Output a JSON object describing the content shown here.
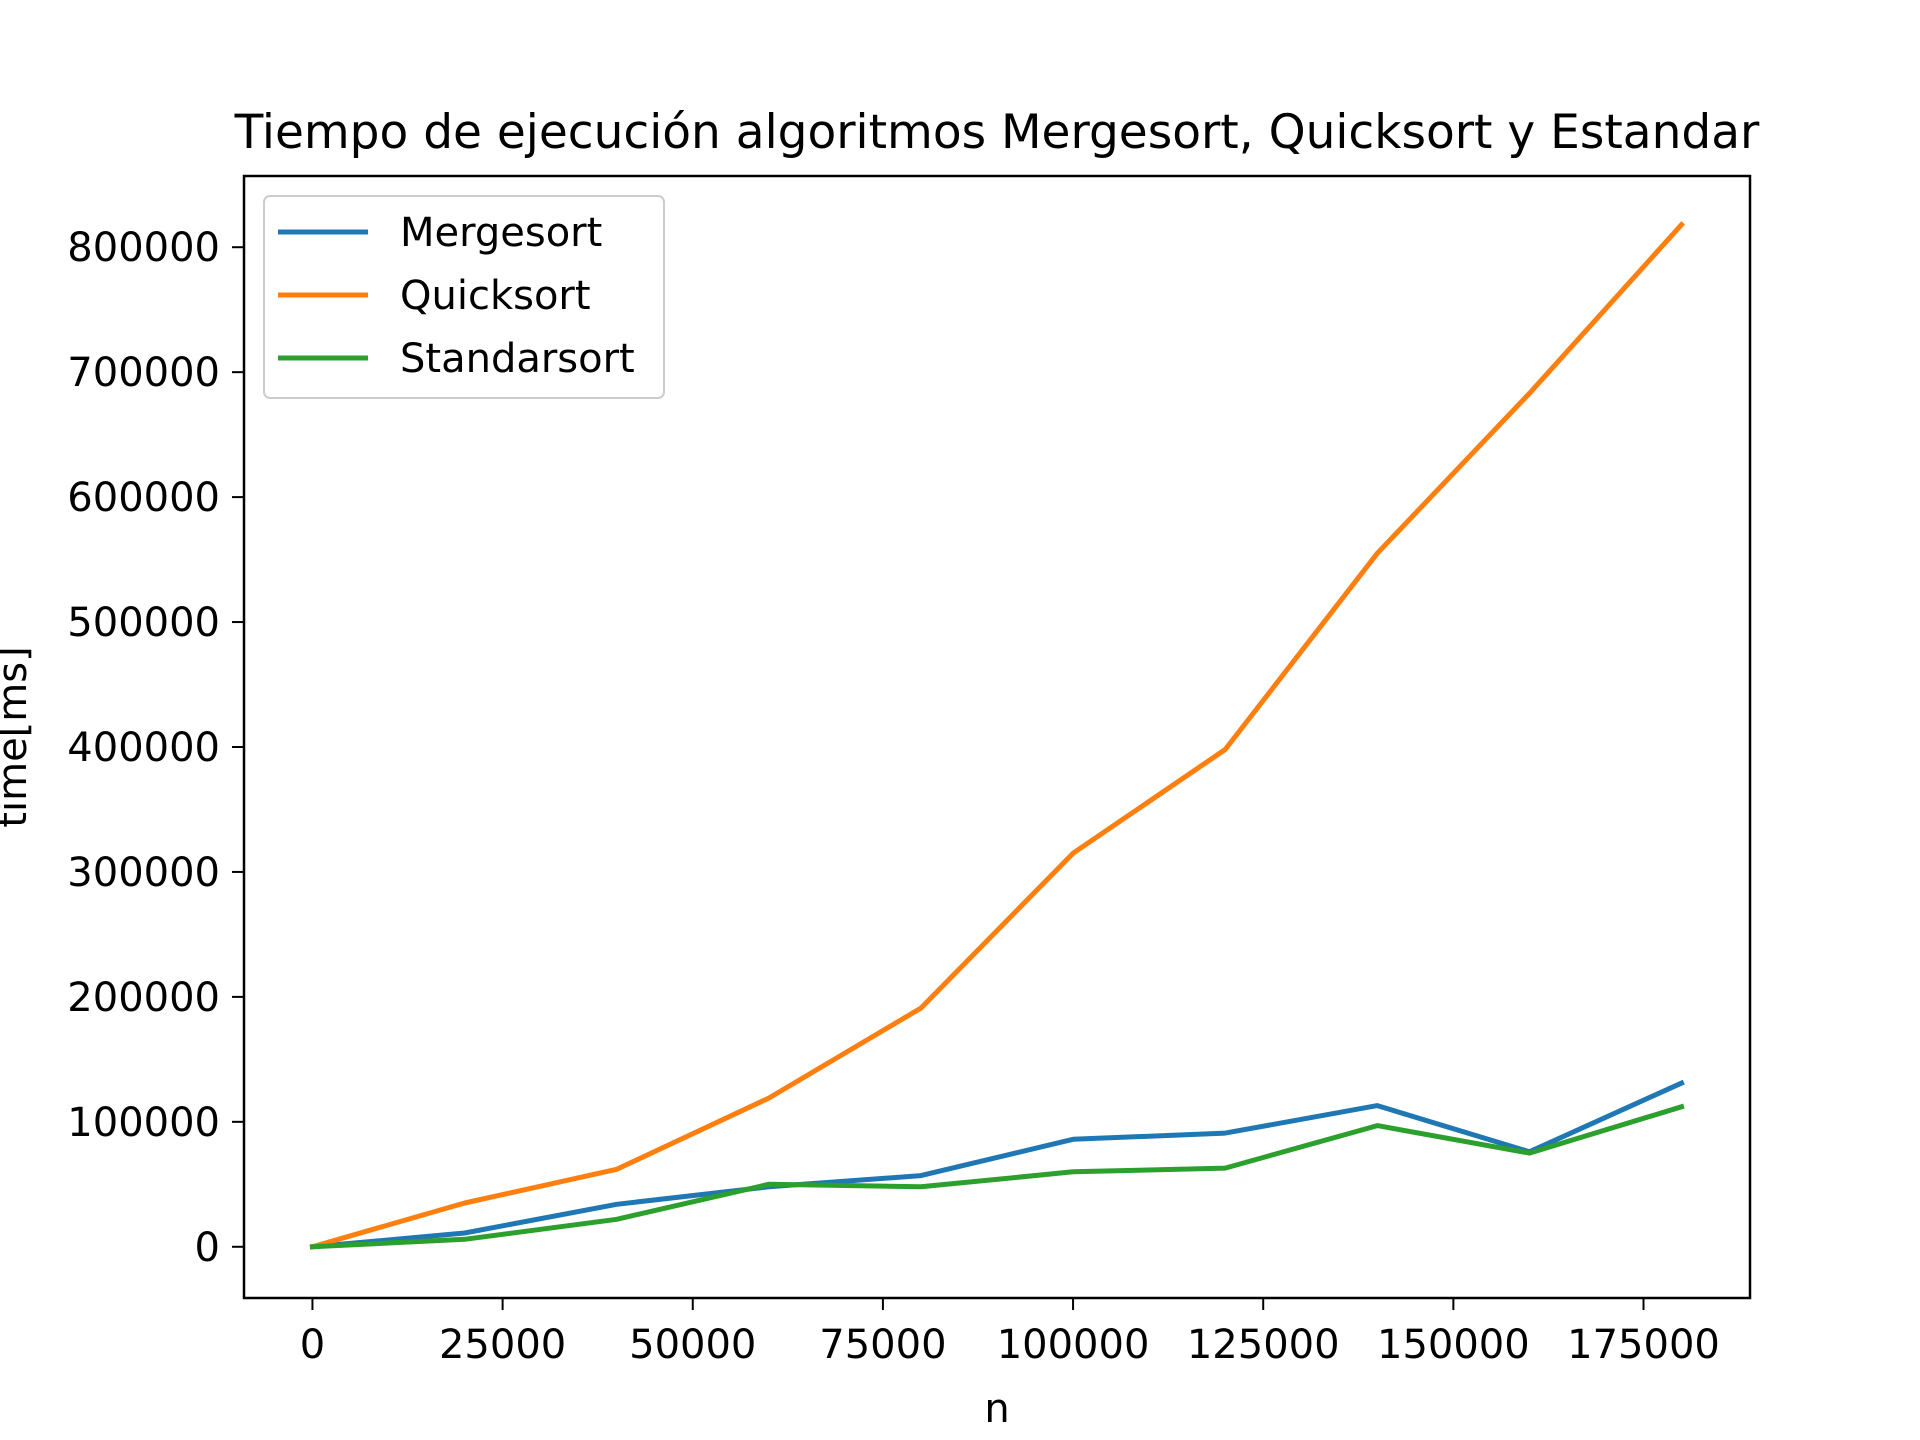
{
  "chart_data": {
    "type": "line",
    "title": "Tiempo de ejecución algoritmos Mergesort, Quicksort y Estandar",
    "xlabel": "n",
    "ylabel": "time[ms]",
    "xlim": [
      -9000,
      189000
    ],
    "ylim": [
      -41000,
      857000
    ],
    "xticks": [
      0,
      25000,
      50000,
      75000,
      100000,
      125000,
      150000,
      175000
    ],
    "xtick_labels": [
      "0",
      "25000",
      "50000",
      "75000",
      "100000",
      "125000",
      "150000",
      "175000"
    ],
    "yticks": [
      0,
      100000,
      200000,
      300000,
      400000,
      500000,
      600000,
      700000,
      800000
    ],
    "ytick_labels": [
      "0",
      "100000",
      "200000",
      "300000",
      "400000",
      "500000",
      "600000",
      "700000",
      "800000"
    ],
    "grid": false,
    "legend_position": "upper left",
    "x": [
      0,
      20000,
      40000,
      60000,
      80000,
      100000,
      120000,
      140000,
      160000,
      180000
    ],
    "series": [
      {
        "name": "Mergesort",
        "color": "#1f77b4",
        "values": [
          0,
          11000,
          34000,
          48000,
          57000,
          86000,
          91000,
          113000,
          76000,
          131000
        ]
      },
      {
        "name": "Quicksort",
        "color": "#ff7f0e",
        "values": [
          0,
          35000,
          62000,
          119000,
          191000,
          315000,
          398000,
          555000,
          683000,
          818000
        ]
      },
      {
        "name": "Standarsort",
        "color": "#2ca02c",
        "values": [
          0,
          6000,
          22000,
          50000,
          48000,
          60000,
          63000,
          97000,
          75000,
          112000
        ]
      }
    ]
  }
}
